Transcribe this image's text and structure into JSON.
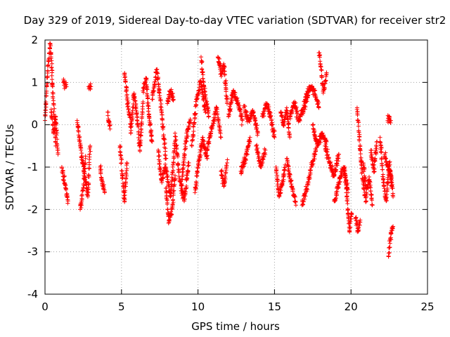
{
  "colors": {
    "series": "#ff0000",
    "grid": "#a0a0a0",
    "axis": "#000000"
  },
  "chart_data": {
    "type": "scatter",
    "title": "Day 329 of 2019, Sidereal Day-to-day VTEC variation (SDTVAR) for receiver str2",
    "xlabel": "GPS time / hours",
    "ylabel": "SDTVAR / TECUs",
    "xlim": [
      0,
      25
    ],
    "ylim": [
      -4,
      2
    ],
    "xticks": [
      0,
      5,
      10,
      15,
      20,
      25
    ],
    "yticks": [
      -4,
      -3,
      -2,
      -1,
      0,
      1,
      2
    ],
    "grid": true,
    "marker": "+",
    "series": [
      {
        "name": "SDTVAR",
        "segments": [
          {
            "x": [
              0.0,
              0.2,
              0.35,
              0.5,
              0.6,
              0.7
            ],
            "y": [
              0.1,
              1.4,
              1.9,
              0.9,
              0.2,
              -0.5
            ]
          },
          {
            "x": [
              0.4,
              0.55,
              0.7,
              0.85
            ],
            "y": [
              0.3,
              -0.2,
              0.2,
              -0.7
            ]
          },
          {
            "x": [
              1.1,
              1.3,
              1.5
            ],
            "y": [
              -1.0,
              -1.4,
              -1.8
            ]
          },
          {
            "x": [
              1.2,
              1.4
            ],
            "y": [
              1.0,
              0.9
            ]
          },
          {
            "x": [
              2.1,
              2.35,
              2.55,
              2.8,
              2.95
            ],
            "y": [
              0.1,
              -0.6,
              -1.1,
              -1.7,
              -0.5
            ]
          },
          {
            "x": [
              2.3,
              2.5,
              2.65
            ],
            "y": [
              -2.0,
              -1.5,
              -0.8
            ]
          },
          {
            "x": [
              2.85,
              3.0
            ],
            "y": [
              0.9,
              0.9
            ]
          },
          {
            "x": [
              3.6,
              3.75,
              3.9
            ],
            "y": [
              -1.0,
              -1.4,
              -1.6
            ]
          },
          {
            "x": [
              4.1,
              4.25
            ],
            "y": [
              0.3,
              -0.1
            ]
          },
          {
            "x": [
              4.9,
              5.05,
              5.2,
              5.35
            ],
            "y": [
              -0.5,
              -1.2,
              -1.8,
              -0.9
            ]
          },
          {
            "x": [
              5.2,
              5.4,
              5.6
            ],
            "y": [
              1.2,
              0.5,
              0.0
            ]
          },
          {
            "x": [
              5.6,
              5.8,
              6.0,
              6.2,
              6.4
            ],
            "y": [
              -0.2,
              0.7,
              0.3,
              -0.6,
              0.5
            ]
          },
          {
            "x": [
              6.4,
              6.6,
              6.8,
              7.0
            ],
            "y": [
              0.8,
              1.1,
              0.2,
              -0.4
            ]
          },
          {
            "x": [
              7.0,
              7.3,
              7.6,
              7.9
            ],
            "y": [
              0.6,
              1.3,
              0.4,
              -0.8
            ]
          },
          {
            "x": [
              7.4,
              7.6,
              7.9,
              8.2,
              8.5
            ],
            "y": [
              -0.6,
              -1.3,
              -1.0,
              -1.7,
              -0.4
            ]
          },
          {
            "x": [
              7.9,
              8.1,
              8.3,
              8.5
            ],
            "y": [
              -1.5,
              -2.3,
              -2.0,
              -1.2
            ]
          },
          {
            "x": [
              8.0,
              8.2,
              8.4
            ],
            "y": [
              0.5,
              0.8,
              0.6
            ]
          },
          {
            "x": [
              8.5,
              8.8,
              9.1,
              9.4
            ],
            "y": [
              -0.2,
              -1.3,
              -1.8,
              -0.9
            ]
          },
          {
            "x": [
              8.9,
              9.2,
              9.5
            ],
            "y": [
              -1.5,
              -0.4,
              0.1
            ]
          },
          {
            "x": [
              9.6,
              9.9,
              10.2,
              10.5
            ],
            "y": [
              -0.5,
              0.6,
              1.0,
              0.3
            ]
          },
          {
            "x": [
              9.8,
              10.0,
              10.3,
              10.6
            ],
            "y": [
              -1.6,
              -1.0,
              -0.3,
              -0.8
            ]
          },
          {
            "x": [
              10.2,
              10.4,
              10.7
            ],
            "y": [
              1.6,
              0.9,
              0.2
            ]
          },
          {
            "x": [
              10.6,
              10.9,
              11.2,
              11.5
            ],
            "y": [
              -0.6,
              -0.1,
              0.4,
              -0.3
            ]
          },
          {
            "x": [
              11.3,
              11.5,
              11.7,
              11.9
            ],
            "y": [
              1.6,
              1.2,
              1.4,
              0.5
            ]
          },
          {
            "x": [
              11.5,
              11.7,
              11.9
            ],
            "y": [
              -1.1,
              -1.4,
              -0.9
            ]
          },
          {
            "x": [
              12.0,
              12.3,
              12.6,
              12.9
            ],
            "y": [
              0.2,
              0.8,
              0.5,
              0.1
            ]
          },
          {
            "x": [
              12.8,
              13.1,
              13.4
            ],
            "y": [
              -1.1,
              -0.8,
              -0.3
            ]
          },
          {
            "x": [
              13.0,
              13.3,
              13.6,
              13.9
            ],
            "y": [
              0.4,
              0.1,
              0.3,
              -0.2
            ]
          },
          {
            "x": [
              13.8,
              14.1,
              14.4
            ],
            "y": [
              -0.5,
              -1.0,
              -0.6
            ]
          },
          {
            "x": [
              14.2,
              14.5,
              14.8,
              15.0
            ],
            "y": [
              0.2,
              0.5,
              0.1,
              -0.3
            ]
          },
          {
            "x": [
              15.1,
              15.3,
              15.5,
              15.7
            ],
            "y": [
              -1.0,
              -1.7,
              -1.4,
              -1.0
            ]
          },
          {
            "x": [
              15.4,
              15.6,
              15.8,
              16.0
            ],
            "y": [
              0.3,
              0.0,
              0.4,
              -0.3
            ]
          },
          {
            "x": [
              15.8,
              16.1,
              16.4
            ],
            "y": [
              -0.8,
              -1.4,
              -1.9
            ]
          },
          {
            "x": [
              16.0,
              16.3,
              16.6,
              16.9,
              17.2
            ],
            "y": [
              0.2,
              0.5,
              0.1,
              0.4,
              0.7
            ]
          },
          {
            "x": [
              16.8,
              17.1,
              17.4,
              17.7
            ],
            "y": [
              -1.9,
              -1.5,
              -1.0,
              -0.6
            ]
          },
          {
            "x": [
              17.0,
              17.3,
              17.6,
              17.9
            ],
            "y": [
              0.6,
              0.9,
              0.8,
              0.4
            ]
          },
          {
            "x": [
              17.5,
              17.8,
              18.1,
              18.4
            ],
            "y": [
              0.0,
              -0.5,
              -0.2,
              -0.4
            ]
          },
          {
            "x": [
              17.9,
              18.05,
              18.2,
              18.4
            ],
            "y": [
              1.7,
              1.3,
              0.8,
              1.2
            ]
          },
          {
            "x": [
              18.3,
              18.6,
              18.9,
              19.2
            ],
            "y": [
              -0.5,
              -0.9,
              -1.2,
              -0.7
            ]
          },
          {
            "x": [
              18.9,
              19.2,
              19.5,
              19.8
            ],
            "y": [
              -1.8,
              -1.4,
              -1.0,
              -1.6
            ]
          },
          {
            "x": [
              19.6,
              19.75,
              19.9,
              20.05
            ],
            "y": [
              -1.0,
              -1.8,
              -2.5,
              -2.1
            ]
          },
          {
            "x": [
              20.3,
              20.45,
              20.6
            ],
            "y": [
              -2.2,
              -2.5,
              -2.3
            ]
          },
          {
            "x": [
              20.4,
              20.6,
              20.8,
              21.0
            ],
            "y": [
              0.4,
              -0.6,
              -1.4,
              -1.8
            ]
          },
          {
            "x": [
              20.8,
              21.0,
              21.2,
              21.4
            ],
            "y": [
              -0.9,
              -1.6,
              -1.3,
              -1.9
            ]
          },
          {
            "x": [
              21.3,
              21.5,
              21.7
            ],
            "y": [
              -0.6,
              -1.1,
              -0.4
            ]
          },
          {
            "x": [
              21.9,
              22.1,
              22.3,
              22.5,
              22.7
            ],
            "y": [
              -0.3,
              -1.3,
              -1.8,
              -0.9,
              -1.5
            ]
          },
          {
            "x": [
              22.2,
              22.4,
              22.6,
              22.75
            ],
            "y": [
              -0.7,
              -1.0,
              -1.2,
              -1.7
            ]
          },
          {
            "x": [
              22.4,
              22.5,
              22.6
            ],
            "y": [
              0.1,
              0.2,
              0.1
            ]
          },
          {
            "x": [
              22.45,
              22.55,
              22.65,
              22.75
            ],
            "y": [
              -3.1,
              -2.8,
              -2.5,
              -2.4
            ]
          }
        ]
      }
    ]
  }
}
